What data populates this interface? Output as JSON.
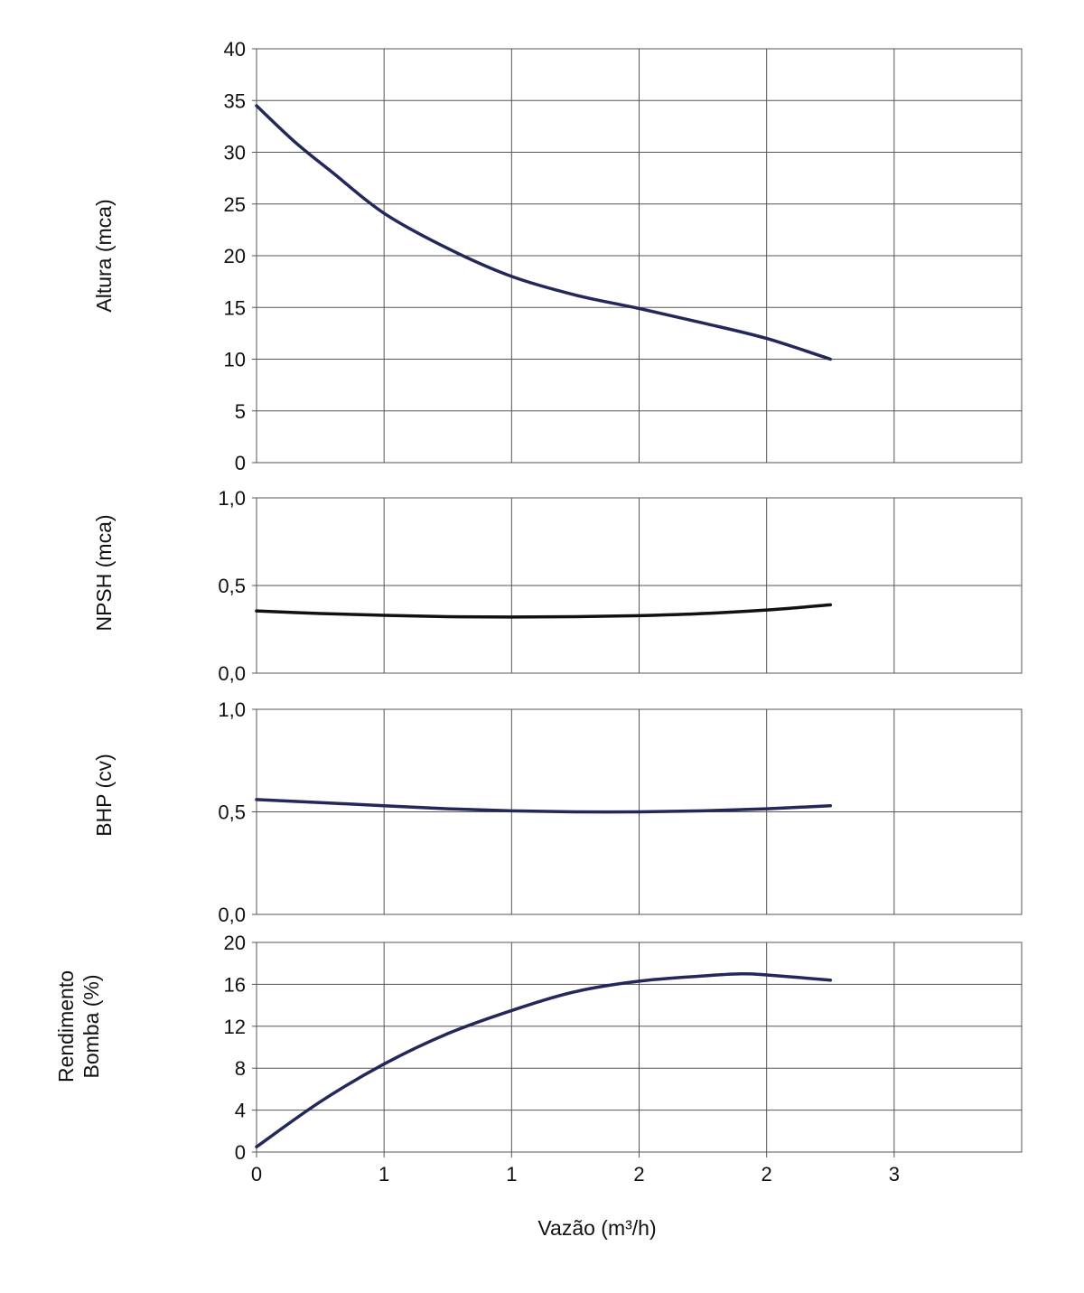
{
  "chart_data": [
    {
      "type": "line",
      "ylabel": [
        "Altura (mca)"
      ],
      "ylim": [
        0,
        40
      ],
      "yticks": [
        "0",
        "5",
        "10",
        "15",
        "20",
        "25",
        "30",
        "35",
        "40"
      ],
      "grid": true,
      "color": "#23285a",
      "series": [
        {
          "x": [
            0.0,
            0.15,
            0.3,
            0.5,
            0.75,
            1.0,
            1.25,
            1.5,
            1.75,
            2.0,
            2.25
          ],
          "y": [
            34.5,
            31.0,
            28.0,
            24.1,
            20.7,
            18.0,
            16.2,
            14.9,
            13.5,
            12.0,
            10.0
          ]
        }
      ]
    },
    {
      "type": "line",
      "ylabel": [
        "NPSH (mca)"
      ],
      "ylim": [
        0,
        1
      ],
      "yticks": [
        "0,0",
        "0,5",
        "1,0"
      ],
      "grid": true,
      "color": "#111111",
      "series": [
        {
          "x": [
            0.0,
            0.25,
            0.5,
            0.75,
            1.0,
            1.25,
            1.5,
            1.75,
            2.0,
            2.25
          ],
          "y": [
            0.355,
            0.34,
            0.33,
            0.322,
            0.32,
            0.322,
            0.328,
            0.34,
            0.36,
            0.39
          ]
        }
      ]
    },
    {
      "type": "line",
      "ylabel": [
        "BHP (cv)"
      ],
      "ylim": [
        0,
        1
      ],
      "yticks": [
        "0,0",
        "0,5",
        "1,0"
      ],
      "grid": true,
      "color": "#23285a",
      "series": [
        {
          "x": [
            0.0,
            0.25,
            0.5,
            0.75,
            1.0,
            1.25,
            1.5,
            1.75,
            2.0,
            2.25
          ],
          "y": [
            0.56,
            0.545,
            0.53,
            0.515,
            0.505,
            0.5,
            0.5,
            0.505,
            0.515,
            0.53
          ]
        }
      ]
    },
    {
      "type": "line",
      "ylabel": [
        "Rendimento",
        "Bomba (%)"
      ],
      "ylim": [
        0,
        20
      ],
      "yticks": [
        "0",
        "4",
        "8",
        "12",
        "16",
        "20"
      ],
      "grid": true,
      "color": "#23285a",
      "series": [
        {
          "x": [
            0.0,
            0.25,
            0.5,
            0.75,
            1.0,
            1.25,
            1.5,
            1.75,
            1.9,
            2.0,
            2.25
          ],
          "y": [
            0.5,
            4.8,
            8.4,
            11.3,
            13.5,
            15.3,
            16.3,
            16.8,
            17.0,
            16.9,
            16.4
          ]
        }
      ]
    }
  ],
  "x_axis": {
    "label": "Vazão (m³/h)",
    "ticks": [
      "0",
      "1",
      "1",
      "2",
      "2",
      "3"
    ],
    "range": [
      0,
      3
    ]
  }
}
